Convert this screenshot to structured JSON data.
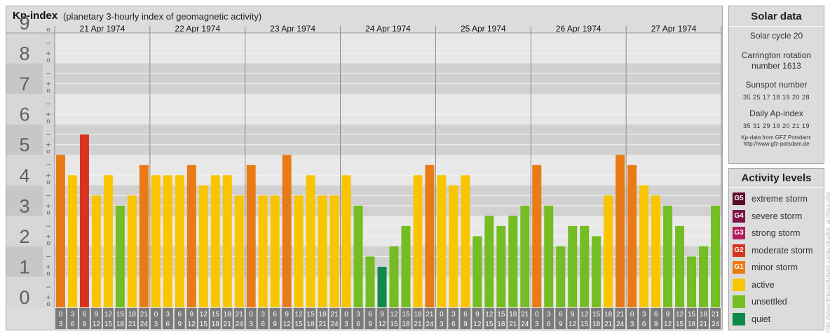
{
  "title": "Kp-index",
  "subtitle": "(planetary 3-hourly index of geomagnetic activity)",
  "chart_data": {
    "type": "bar",
    "ylim": [
      0,
      9
    ],
    "y_tick_labels": [
      "0",
      "1",
      "2",
      "3",
      "4",
      "5",
      "6",
      "7",
      "8",
      "9"
    ],
    "thirds_labels": [
      "o",
      "+",
      "−"
    ],
    "dates": [
      "21 Apr 1974",
      "22 Apr 1974",
      "23 Apr 1974",
      "24 Apr 1974",
      "25 Apr 1974",
      "26 Apr 1974",
      "27 Apr 1974"
    ],
    "intervals": [
      [
        "0",
        "3"
      ],
      [
        "3",
        "6"
      ],
      [
        "6",
        "9"
      ],
      [
        "9",
        "12"
      ],
      [
        "12",
        "15"
      ],
      [
        "15",
        "18"
      ],
      [
        "18",
        "21"
      ],
      [
        "21",
        "24"
      ]
    ],
    "values": [
      [
        5.0,
        4.333,
        5.667,
        3.667,
        4.333,
        3.333,
        3.667,
        4.667
      ],
      [
        4.333,
        4.333,
        4.333,
        4.667,
        4.0,
        4.333,
        4.333,
        3.667
      ],
      [
        4.667,
        3.667,
        3.667,
        5.0,
        3.667,
        4.333,
        3.667,
        3.667
      ],
      [
        4.333,
        3.333,
        1.667,
        1.333,
        2.0,
        2.667,
        4.333,
        4.667
      ],
      [
        4.333,
        4.0,
        4.333,
        2.333,
        3.0,
        2.667,
        3.0,
        3.333
      ],
      [
        4.667,
        3.333,
        2.0,
        2.667,
        2.667,
        2.333,
        3.667,
        5.0
      ],
      [
        4.667,
        4.0,
        3.667,
        3.333,
        2.667,
        1.667,
        2.0,
        3.333
      ]
    ],
    "level_colors": {
      "quiet": "#0f8a4a",
      "unsettled": "#74bd22",
      "active": "#f8c500",
      "minor_storm": "#e97b16",
      "moderate_storm": "#d53420"
    }
  },
  "solar": {
    "header": "Solar data",
    "cycle": "Solar cycle 20",
    "carrington": "Carrington rotation number 1613",
    "sunspot_label": "Sunspot number",
    "sunspot_values": "35 25 17 18 19 20 28",
    "ap_label": "Daily Ap-index",
    "ap_values": "35 31 29 19 20 21 19",
    "source_line1": "Kp-data from GFZ Potsdam:",
    "source_line2": "http://www.gfz-potsdam.de"
  },
  "activity": {
    "header": "Activity levels",
    "levels": [
      {
        "code": "G5",
        "label": "extreme storm",
        "color": "#5a0a2c"
      },
      {
        "code": "G4",
        "label": "severe storm",
        "color": "#7c1248"
      },
      {
        "code": "G3",
        "label": "strong storm",
        "color": "#b21e60"
      },
      {
        "code": "G2",
        "label": "moderate storm",
        "color": "#d53420"
      },
      {
        "code": "G1",
        "label": "minor storm",
        "color": "#e97b16"
      },
      {
        "code": "",
        "label": "active",
        "color": "#f8c500"
      },
      {
        "code": "",
        "label": "unsettled",
        "color": "#74bd22"
      },
      {
        "code": "",
        "label": "quiet",
        "color": "#0f8a4a"
      }
    ]
  },
  "watermark": "http://www.theusefulweb.ca/aurora/kp_archive.php"
}
